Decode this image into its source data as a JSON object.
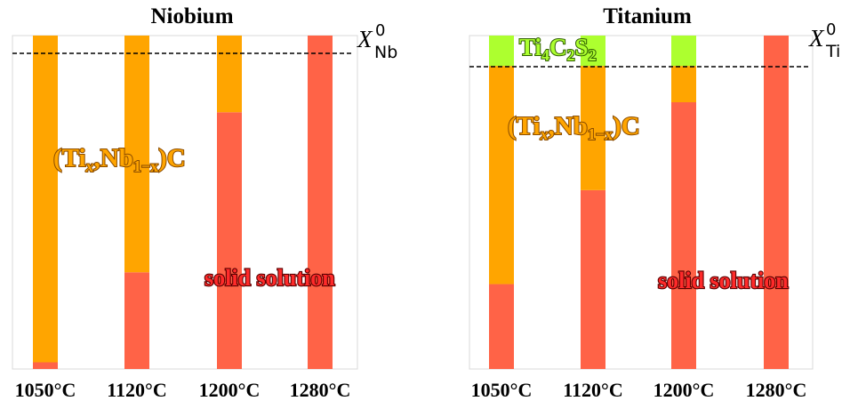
{
  "colors": {
    "solid_solution": "#FF6347",
    "carbide": "#FFA500",
    "sulfide": "#ADFF2F",
    "outline_orange": "#8a4b00",
    "outline_red": "#6b0000",
    "outline_green": "#2f5f00",
    "frame": "#d8d8d8"
  },
  "chart_data": [
    {
      "type": "bar",
      "stacked": true,
      "title": "Niobium",
      "reference_line": {
        "label_symbol": "X",
        "label_sub": "Nb",
        "label_sup": "0",
        "value": 1.0,
        "style": "dashed"
      },
      "categories": [
        "1050°C",
        "1120°C",
        "1200°C",
        "1280°C"
      ],
      "series": [
        {
          "name": "solid solution",
          "color": "#FF6347",
          "values": [
            0.02,
            0.29,
            0.77,
            1.0
          ]
        },
        {
          "name": "(Tix,Nb1−x)C",
          "color": "#FFA500",
          "values": [
            0.98,
            0.71,
            0.23,
            0.0
          ]
        }
      ],
      "ylim": [
        0,
        1.0
      ],
      "yticks": false,
      "xlabel": "",
      "ylabel": "",
      "annotations": [
        {
          "text_parts": [
            "(Ti",
            "x",
            ",Nb",
            "1−x",
            ")C"
          ],
          "color": "#FFA500"
        },
        {
          "text": "solid solution",
          "color": "#FF3B3B"
        }
      ]
    },
    {
      "type": "bar",
      "stacked": true,
      "title": "Titanium",
      "reference_line": {
        "label_symbol": "X",
        "label_sub": "Ti",
        "label_sup": "0",
        "value": 1.0,
        "style": "dashed"
      },
      "categories": [
        "1050°C",
        "1120°C",
        "1200°C",
        "1280°C"
      ],
      "series": [
        {
          "name": "solid solution",
          "color": "#FF6347",
          "values": [
            0.28,
            0.59,
            0.88,
            1.1
          ]
        },
        {
          "name": "(Tix,Nb1−x)C",
          "color": "#FFA500",
          "values": [
            0.72,
            0.41,
            0.12,
            0.0
          ]
        },
        {
          "name": "Ti4C2S2",
          "color": "#ADFF2F",
          "values": [
            0.1,
            0.1,
            0.1,
            0.0
          ]
        }
      ],
      "ylim": [
        0,
        1.1
      ],
      "yticks": false,
      "xlabel": "",
      "ylabel": "",
      "annotations": [
        {
          "text_parts": [
            "Ti",
            "4",
            "C",
            "2",
            "S",
            "2"
          ],
          "color": "#ADFF2F"
        },
        {
          "text_parts": [
            "(Ti",
            "x",
            ",Nb",
            "1−x",
            ")C"
          ],
          "color": "#FFA500"
        },
        {
          "text": "solid solution",
          "color": "#FF3B3B"
        }
      ]
    }
  ]
}
